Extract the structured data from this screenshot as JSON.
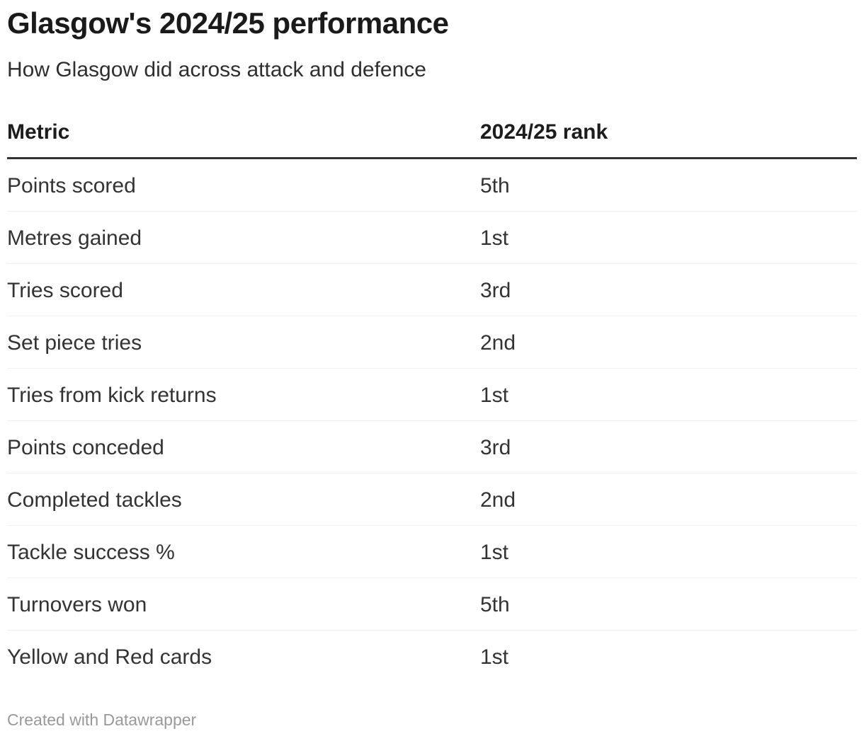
{
  "header": {
    "title": "Glasgow's 2024/25 performance",
    "subtitle": "How Glasgow did across attack and defence"
  },
  "table": {
    "columns": [
      "Metric",
      "2024/25 rank"
    ],
    "rows": [
      {
        "metric": "Points scored",
        "rank": "5th"
      },
      {
        "metric": "Metres gained",
        "rank": "1st"
      },
      {
        "metric": "Tries scored",
        "rank": "3rd"
      },
      {
        "metric": "Set piece tries",
        "rank": "2nd"
      },
      {
        "metric": "Tries from kick returns",
        "rank": "1st"
      },
      {
        "metric": "Points conceded",
        "rank": "3rd"
      },
      {
        "metric": "Completed tackles",
        "rank": "2nd"
      },
      {
        "metric": "Tackle success %",
        "rank": "1st"
      },
      {
        "metric": "Turnovers won",
        "rank": "5th"
      },
      {
        "metric": "Yellow and Red cards",
        "rank": "1st"
      }
    ]
  },
  "footer": {
    "credit": "Created with Datawrapper"
  },
  "colors": {
    "background": "#ffffff",
    "title_text": "#1a1a1a",
    "body_text": "#333333",
    "header_rule": "#333333",
    "row_separator": "#f0f0f0",
    "footer_text": "#999999"
  },
  "chart_data": {
    "type": "table",
    "title": "Glasgow's 2024/25 performance",
    "subtitle": "How Glasgow did across attack and defence",
    "columns": [
      "Metric",
      "2024/25 rank"
    ],
    "rows": [
      [
        "Points scored",
        "5th"
      ],
      [
        "Metres gained",
        "1st"
      ],
      [
        "Tries scored",
        "3rd"
      ],
      [
        "Set piece tries",
        "2nd"
      ],
      [
        "Tries from kick returns",
        "1st"
      ],
      [
        "Points conceded",
        "3rd"
      ],
      [
        "Completed tackles",
        "2nd"
      ],
      [
        "Tackle success %",
        "1st"
      ],
      [
        "Turnovers won",
        "5th"
      ],
      [
        "Yellow and Red cards",
        "1st"
      ]
    ],
    "footnote": "Created with Datawrapper",
    "layout_hints": {
      "grid": "horizontal row separators only",
      "header_rule": "thick dark line under column headers",
      "column_alignment": [
        "left",
        "left"
      ]
    }
  }
}
